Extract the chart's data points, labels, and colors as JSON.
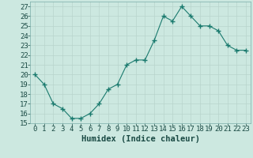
{
  "x": [
    0,
    1,
    2,
    3,
    4,
    5,
    6,
    7,
    8,
    9,
    10,
    11,
    12,
    13,
    14,
    15,
    16,
    17,
    18,
    19,
    20,
    21,
    22,
    23
  ],
  "y": [
    20,
    19,
    17,
    16.5,
    15.5,
    15.5,
    16,
    17,
    18.5,
    19,
    21,
    21.5,
    21.5,
    23.5,
    26,
    25.5,
    27,
    26,
    25,
    25,
    24.5,
    23,
    22.5,
    22.5
  ],
  "line_color": "#1a7a6e",
  "marker": "+",
  "marker_size": 4,
  "bg_color": "#cce8e0",
  "grid_color": "#b8d4cc",
  "xlabel": "Humidex (Indice chaleur)",
  "xlabel_fontsize": 7.5,
  "tick_fontsize": 6.5,
  "xlim": [
    -0.5,
    23.5
  ],
  "ylim": [
    15,
    27.5
  ],
  "yticks": [
    15,
    16,
    17,
    18,
    19,
    20,
    21,
    22,
    23,
    24,
    25,
    26,
    27
  ],
  "xticks": [
    0,
    1,
    2,
    3,
    4,
    5,
    6,
    7,
    8,
    9,
    10,
    11,
    12,
    13,
    14,
    15,
    16,
    17,
    18,
    19,
    20,
    21,
    22,
    23
  ]
}
